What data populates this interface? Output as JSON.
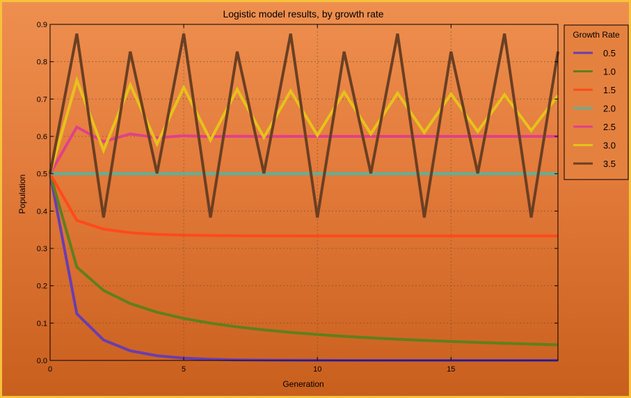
{
  "chart_data": {
    "type": "line",
    "title": "Logistic model results, by growth rate",
    "xlabel": "Generation",
    "ylabel": "Population",
    "xlim": [
      0,
      19
    ],
    "ylim": [
      0,
      0.9
    ],
    "x_ticks": [
      0,
      5,
      10,
      15
    ],
    "y_ticks": [
      0.0,
      0.1,
      0.2,
      0.3,
      0.4,
      0.5,
      0.6,
      0.7,
      0.8,
      0.9
    ],
    "y_tick_labels": [
      "0.0",
      "0.1",
      "0.2",
      "0.3",
      "0.4",
      "0.5",
      "0.6",
      "0.7",
      "0.8",
      "0.9"
    ],
    "x_tick_labels": [
      "0",
      "5",
      "10",
      "15"
    ],
    "grid": true,
    "legend": {
      "title": "Growth Rate",
      "position": "outside-right-top"
    },
    "x": [
      0,
      1,
      2,
      3,
      4,
      5,
      6,
      7,
      8,
      9,
      10,
      11,
      12,
      13,
      14,
      15,
      16,
      17,
      18,
      19
    ],
    "series": [
      {
        "name": "0.5",
        "color": "#6a3db0",
        "values": [
          0.5,
          0.125,
          0.0547,
          0.0258,
          0.0126,
          0.0062,
          0.0031,
          0.0015,
          0.0008,
          0.0004,
          0.0002,
          0.0001,
          0,
          0,
          0,
          0,
          0,
          0,
          0,
          0
        ]
      },
      {
        "name": "1.0",
        "color": "#5f7f1c",
        "values": [
          0.5,
          0.25,
          0.1875,
          0.1523,
          0.1291,
          0.1124,
          0.0998,
          0.0898,
          0.0818,
          0.0751,
          0.0695,
          0.0646,
          0.0604,
          0.0568,
          0.0536,
          0.0507,
          0.0482,
          0.0458,
          0.0437,
          0.0418
        ]
      },
      {
        "name": "1.5",
        "color": "#ff4a1a",
        "values": [
          0.5,
          0.375,
          0.3516,
          0.3419,
          0.3375,
          0.3354,
          0.3344,
          0.3338,
          0.3336,
          0.3335,
          0.3334,
          0.3334,
          0.3333,
          0.3333,
          0.3333,
          0.3333,
          0.3333,
          0.3333,
          0.3333,
          0.3333
        ]
      },
      {
        "name": "2.0",
        "color": "#56b4a0",
        "values": [
          0.5,
          0.5,
          0.5,
          0.5,
          0.5,
          0.5,
          0.5,
          0.5,
          0.5,
          0.5,
          0.5,
          0.5,
          0.5,
          0.5,
          0.5,
          0.5,
          0.5,
          0.5,
          0.5,
          0.5
        ]
      },
      {
        "name": "2.5",
        "color": "#e0418a",
        "values": [
          0.5,
          0.625,
          0.5859,
          0.6065,
          0.5966,
          0.6017,
          0.5992,
          0.6004,
          0.5998,
          0.6001,
          0.5999,
          0.6,
          0.6,
          0.6,
          0.6,
          0.6,
          0.6,
          0.6,
          0.6,
          0.6
        ]
      },
      {
        "name": "3.0",
        "color": "#e6c21a",
        "values": [
          0.5,
          0.75,
          0.5625,
          0.7383,
          0.5796,
          0.731,
          0.5899,
          0.7257,
          0.5974,
          0.7216,
          0.6027,
          0.7184,
          0.6069,
          0.7157,
          0.6104,
          0.7135,
          0.6132,
          0.7116,
          0.6157,
          0.7099
        ]
      },
      {
        "name": "3.5",
        "color": "#6b3f22",
        "values": [
          0.5,
          0.875,
          0.3828,
          0.8269,
          0.5009,
          0.875,
          0.3828,
          0.8269,
          0.5009,
          0.875,
          0.3828,
          0.8269,
          0.5009,
          0.875,
          0.3828,
          0.8269,
          0.5009,
          0.875,
          0.3828,
          0.8269
        ]
      }
    ]
  }
}
